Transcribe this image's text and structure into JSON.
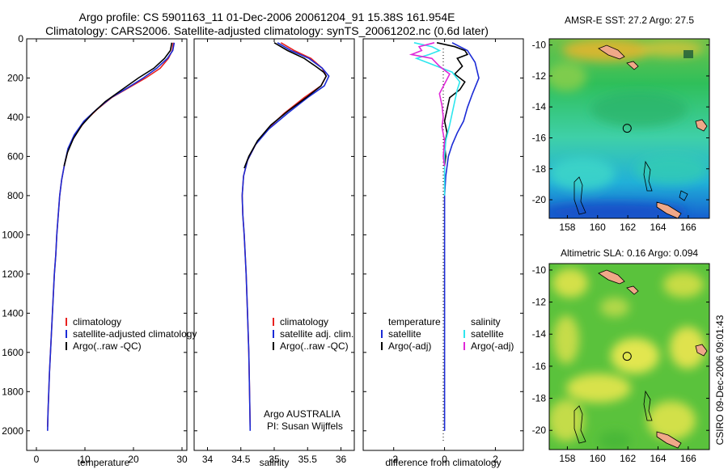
{
  "header": {
    "title_line1": "Argo profile: CS 5901163_11 01-Dec-2006 20061204_91 15.38S 161.954E",
    "title_line2": "Climatology: CARS2006. Satellite-adjusted climatology: synTS_20061202.nc (0.6d later)"
  },
  "stamp": "CSIRO 09-Dec-2006 09:01:43",
  "colors": {
    "red": "#e8211f",
    "blue": "#1b2bd6",
    "black": "#000000",
    "cyan": "#2ee6ee",
    "magenta": "#e028d8"
  },
  "chart_data": [
    {
      "type": "line",
      "id": "temperature",
      "xlabel": "temperature",
      "ylabel": "",
      "xlim": [
        -2,
        31
      ],
      "ylim": [
        0,
        2100
      ],
      "xticks": [
        0,
        10,
        20,
        30
      ],
      "yticks": [
        0,
        200,
        400,
        600,
        800,
        1000,
        1200,
        1400,
        1600,
        1800,
        2000
      ],
      "legend": {
        "position": "lower-middle",
        "entries": [
          "climatology",
          "satellite-adjusted climatology",
          "Argo(..raw -QC)"
        ]
      },
      "series": [
        {
          "name": "climatology",
          "color": "red",
          "points": [
            [
              28.2,
              20
            ],
            [
              28.0,
              60
            ],
            [
              27.2,
              100
            ],
            [
              25.5,
              150
            ],
            [
              22.5,
              200
            ],
            [
              19,
              250
            ],
            [
              15.5,
              300
            ],
            [
              12.5,
              360
            ],
            [
              10,
              420
            ],
            [
              8,
              490
            ],
            [
              6.6,
              560
            ],
            [
              5.8,
              640
            ],
            [
              5.2,
              720
            ],
            [
              4.8,
              800
            ],
            [
              4.5,
              900
            ],
            [
              4.2,
              1000
            ],
            [
              4.0,
              1100
            ],
            [
              3.7,
              1200
            ],
            [
              3.5,
              1300
            ],
            [
              3.3,
              1400
            ],
            [
              3.1,
              1500
            ],
            [
              2.9,
              1600
            ],
            [
              2.7,
              1700
            ],
            [
              2.55,
              1800
            ],
            [
              2.4,
              1900
            ],
            [
              2.3,
              1980
            ]
          ]
        },
        {
          "name": "satellite-adjusted climatology",
          "color": "blue",
          "points": [
            [
              28.4,
              20
            ],
            [
              28.1,
              60
            ],
            [
              27.0,
              100
            ],
            [
              24.8,
              150
            ],
            [
              22,
              200
            ],
            [
              18.8,
              250
            ],
            [
              15.4,
              300
            ],
            [
              12.4,
              360
            ],
            [
              9.8,
              420
            ],
            [
              7.8,
              490
            ],
            [
              6.5,
              560
            ],
            [
              5.8,
              640
            ],
            [
              5.2,
              720
            ],
            [
              4.8,
              800
            ],
            [
              4.5,
              900
            ],
            [
              4.2,
              1000
            ],
            [
              4.0,
              1100
            ],
            [
              3.7,
              1200
            ],
            [
              3.5,
              1300
            ],
            [
              3.3,
              1400
            ],
            [
              3.1,
              1500
            ],
            [
              2.9,
              1600
            ],
            [
              2.7,
              1700
            ],
            [
              2.55,
              1800
            ],
            [
              2.4,
              1900
            ],
            [
              2.3,
              2000
            ]
          ]
        },
        {
          "name": "Argo(..raw -QC)",
          "color": "black",
          "points": [
            [
              27.9,
              20
            ],
            [
              27.6,
              60
            ],
            [
              26.4,
              100
            ],
            [
              24.2,
              150
            ],
            [
              21,
              200
            ],
            [
              17.6,
              260
            ],
            [
              14.2,
              320
            ],
            [
              11.6,
              380
            ],
            [
              9.4,
              440
            ],
            [
              7.6,
              510
            ],
            [
              6.4,
              580
            ],
            [
              5.7,
              650
            ]
          ]
        }
      ]
    },
    {
      "type": "line",
      "id": "salinity",
      "xlabel": "salinity",
      "xlim": [
        33.8,
        36.2
      ],
      "ylim": [
        0,
        2100
      ],
      "xticks": [
        34,
        34.5,
        35,
        35.5,
        36
      ],
      "legend": {
        "position": "lower-middle",
        "entries": [
          "climatology",
          "satellite adj. clim.",
          "Argo(..raw -QC)"
        ]
      },
      "annotations": [
        "Argo AUSTRALIA",
        "PI: Susan Wijffels"
      ],
      "series": [
        {
          "name": "climatology",
          "color": "red",
          "points": [
            [
              35.1,
              20
            ],
            [
              35.3,
              60
            ],
            [
              35.55,
              100
            ],
            [
              35.72,
              150
            ],
            [
              35.78,
              190
            ],
            [
              35.7,
              240
            ],
            [
              35.45,
              300
            ],
            [
              35.15,
              380
            ],
            [
              34.9,
              460
            ],
            [
              34.72,
              540
            ],
            [
              34.6,
              620
            ],
            [
              34.54,
              700
            ],
            [
              34.52,
              800
            ],
            [
              34.53,
              900
            ],
            [
              34.55,
              1000
            ],
            [
              34.58,
              1200
            ],
            [
              34.6,
              1400
            ],
            [
              34.62,
              1600
            ],
            [
              34.63,
              1800
            ],
            [
              34.64,
              1980
            ]
          ]
        },
        {
          "name": "satellite adj. clim.",
          "color": "blue",
          "points": [
            [
              35.05,
              20
            ],
            [
              35.25,
              60
            ],
            [
              35.52,
              100
            ],
            [
              35.72,
              150
            ],
            [
              35.82,
              190
            ],
            [
              35.75,
              240
            ],
            [
              35.5,
              300
            ],
            [
              35.2,
              380
            ],
            [
              34.92,
              460
            ],
            [
              34.72,
              540
            ],
            [
              34.6,
              620
            ],
            [
              34.54,
              700
            ],
            [
              34.52,
              800
            ],
            [
              34.53,
              900
            ],
            [
              34.55,
              1000
            ],
            [
              34.58,
              1200
            ],
            [
              34.6,
              1400
            ],
            [
              34.62,
              1600
            ],
            [
              34.63,
              1800
            ],
            [
              34.64,
              2000
            ]
          ]
        },
        {
          "name": "Argo(..raw -QC)",
          "color": "black",
          "points": [
            [
              35.0,
              20
            ],
            [
              35.2,
              60
            ],
            [
              35.45,
              100
            ],
            [
              35.62,
              140
            ],
            [
              35.74,
              170
            ],
            [
              35.78,
              190
            ],
            [
              35.7,
              240
            ],
            [
              35.48,
              300
            ],
            [
              35.2,
              370
            ],
            [
              34.95,
              440
            ],
            [
              34.75,
              520
            ],
            [
              34.62,
              600
            ],
            [
              34.55,
              660
            ]
          ]
        }
      ]
    },
    {
      "type": "line",
      "id": "difference",
      "xlabel": "difference from climatology",
      "xlim": [
        -3.2,
        3.1
      ],
      "ylim": [
        0,
        2100
      ],
      "xticks": [
        -2,
        0,
        2
      ],
      "legend": {
        "position": "lower-middle",
        "entries": [
          "temperature",
          "satellite",
          "Argo(-adj)",
          "salinity",
          "satellite",
          "Argo(-adj)"
        ]
      },
      "series": [
        {
          "name": "temperature satellite",
          "color": "blue",
          "points": [
            [
              0.3,
              20
            ],
            [
              0.9,
              60
            ],
            [
              1.2,
              120
            ],
            [
              1.35,
              200
            ],
            [
              1.1,
              280
            ],
            [
              0.9,
              350
            ],
            [
              0.75,
              420
            ],
            [
              0.5,
              480
            ],
            [
              0.3,
              540
            ],
            [
              0.15,
              600
            ],
            [
              0.05,
              700
            ],
            [
              0,
              800
            ],
            [
              0,
              1000
            ],
            [
              0,
              1500
            ],
            [
              0,
              2000
            ]
          ]
        },
        {
          "name": "temperature Argo(-adj)",
          "color": "black",
          "points": [
            [
              -0.3,
              20
            ],
            [
              0.4,
              40
            ],
            [
              0.8,
              60
            ],
            [
              0.9,
              80
            ],
            [
              0.5,
              100
            ],
            [
              0.7,
              140
            ],
            [
              0.4,
              180
            ],
            [
              0.8,
              220
            ],
            [
              0.6,
              260
            ],
            [
              0.2,
              300
            ],
            [
              0.1,
              360
            ],
            [
              0.0,
              420
            ],
            [
              0.1,
              480
            ],
            [
              0.0,
              540
            ],
            [
              0.05,
              600
            ],
            [
              0.0,
              650
            ]
          ]
        },
        {
          "name": "salinity satellite",
          "color": "cyan",
          "points": [
            [
              -1.2,
              20
            ],
            [
              -0.5,
              40
            ],
            [
              -0.2,
              60
            ],
            [
              -0.6,
              80
            ],
            [
              -1.1,
              100
            ],
            [
              -0.5,
              130
            ],
            [
              0.3,
              170
            ],
            [
              0.6,
              220
            ],
            [
              0.5,
              260
            ],
            [
              0.4,
              320
            ],
            [
              0.3,
              380
            ],
            [
              0.2,
              440
            ],
            [
              0.05,
              520
            ],
            [
              0,
              600
            ],
            [
              0,
              800
            ]
          ]
        },
        {
          "name": "salinity Argo(-adj)",
          "color": "magenta",
          "points": [
            [
              -0.4,
              20
            ],
            [
              -1.0,
              40
            ],
            [
              -0.9,
              60
            ],
            [
              -1.3,
              80
            ],
            [
              -0.5,
              100
            ],
            [
              -0.2,
              140
            ],
            [
              0.2,
              180
            ],
            [
              0.0,
              230
            ],
            [
              -0.2,
              280
            ],
            [
              -0.1,
              340
            ],
            [
              -0.05,
              400
            ],
            [
              -0.1,
              450
            ],
            [
              0.0,
              520
            ],
            [
              -0.05,
              600
            ],
            [
              0.0,
              650
            ]
          ]
        }
      ]
    },
    {
      "type": "heatmap",
      "id": "sst_map",
      "title": "AMSR-E SST: 27.2  Argo: 27.5",
      "xlim": [
        156.8,
        167.4
      ],
      "ylim": [
        -21.2,
        -9.6
      ],
      "xticks": [
        158,
        160,
        162,
        164,
        166
      ],
      "yticks": [
        -10,
        -12,
        -14,
        -16,
        -18,
        -20
      ],
      "marker": {
        "lon": 161.954,
        "lat": -15.38
      }
    },
    {
      "type": "heatmap",
      "id": "sla_map",
      "title": "Altimetric SLA: 0.16  Argo: 0.094",
      "xlim": [
        156.8,
        167.4
      ],
      "ylim": [
        -21.2,
        -9.6
      ],
      "xticks": [
        158,
        160,
        162,
        164,
        166
      ],
      "yticks": [
        -10,
        -12,
        -14,
        -16,
        -18,
        -20
      ],
      "marker": {
        "lon": 161.954,
        "lat": -15.38
      }
    }
  ]
}
